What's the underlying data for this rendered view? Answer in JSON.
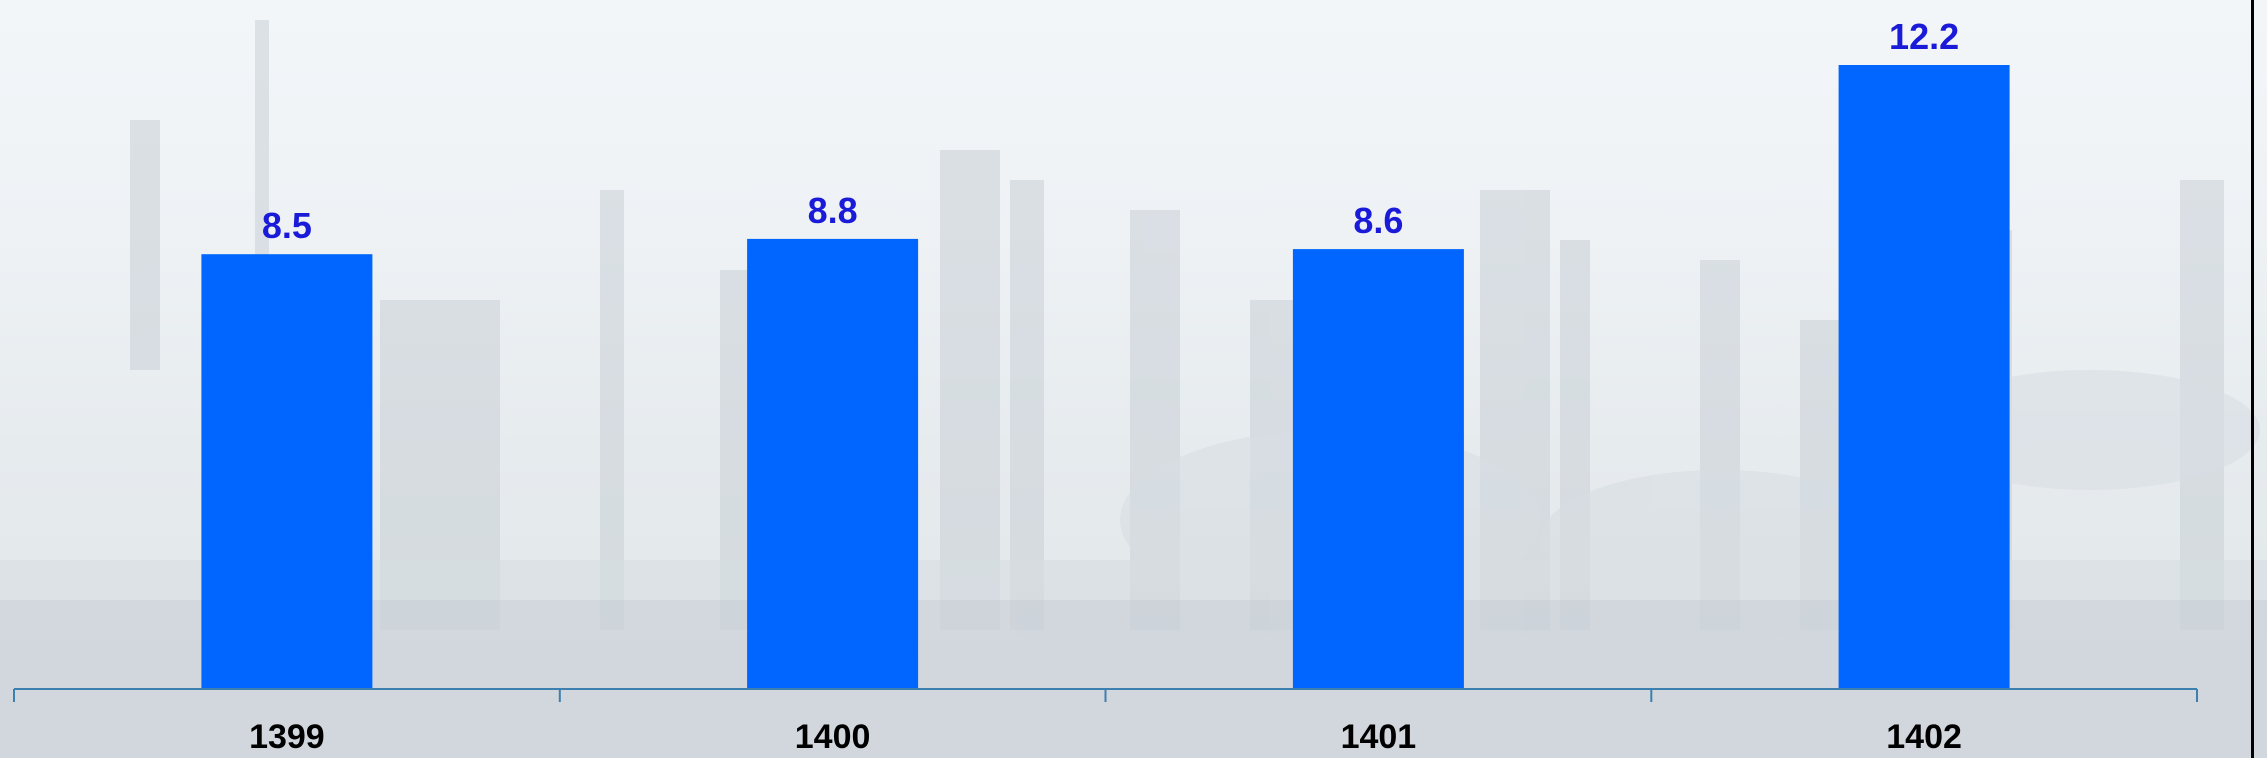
{
  "chart_data": {
    "type": "bar",
    "categories": [
      "1399",
      "1400",
      "1401",
      "1402"
    ],
    "values": [
      8.5,
      8.8,
      8.6,
      12.2
    ],
    "data_labels": [
      "8.5",
      "8.8",
      "8.6",
      "12.2"
    ],
    "title": "",
    "xlabel": "",
    "ylabel": "",
    "ylim": [
      0,
      12.9
    ],
    "grid": false,
    "legend": "none"
  },
  "colors": {
    "bar": "#0066ff",
    "data_label": "#1a1ad9",
    "axis": "#3d7fae",
    "tick_label": "#000000",
    "frame": "#000000"
  },
  "background": {
    "description_icon": "refinery-background-image"
  }
}
